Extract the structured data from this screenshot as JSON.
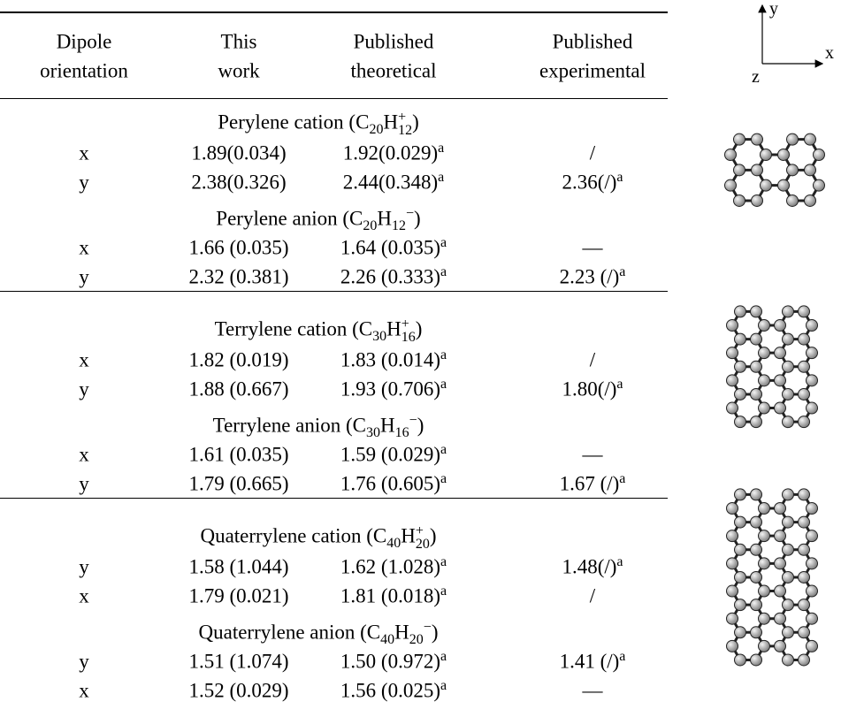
{
  "columns": [
    [
      "Dipole",
      "orientation"
    ],
    [
      "This",
      "work"
    ],
    [
      "Published",
      "theoretical"
    ],
    [
      "Published",
      "experimental"
    ]
  ],
  "sections": [
    {
      "groups": [
        {
          "title": [
            {
              "text": "Perylene cation (C"
            },
            {
              "sub": "20"
            },
            {
              "text": "H"
            },
            {
              "sup": "+",
              "sub": "12"
            },
            {
              "text": ")"
            }
          ],
          "rows": [
            {
              "orientation": "x",
              "this_work": "1.89(0.034)",
              "theoretical": {
                "text": "1.92(0.029)",
                "sup": "a"
              },
              "experimental": {
                "text": "/"
              }
            },
            {
              "orientation": "y",
              "this_work": "2.38(0.326)",
              "theoretical": {
                "text": "2.44(0.348)",
                "sup": "a"
              },
              "experimental": {
                "text": "2.36(/)",
                "sup": "a"
              }
            }
          ]
        },
        {
          "title": [
            {
              "text": "Perylene anion (C"
            },
            {
              "sub": "20"
            },
            {
              "text": "H"
            },
            {
              "sub": "12"
            },
            {
              "sup": "−"
            },
            {
              "text": ")"
            }
          ],
          "rows": [
            {
              "orientation": "x",
              "this_work": "1.66 (0.035)",
              "theoretical": {
                "text": "1.64 (0.035)",
                "sup": "a"
              },
              "experimental": {
                "text": "—"
              }
            },
            {
              "orientation": "y",
              "this_work": "2.32 (0.381)",
              "theoretical": {
                "text": "2.26 (0.333)",
                "sup": "a"
              },
              "experimental": {
                "text": "2.23 (/)",
                "sup": "a"
              }
            }
          ]
        }
      ]
    },
    {
      "groups": [
        {
          "title": [
            {
              "text": "Terrylene cation (C"
            },
            {
              "sub": "30"
            },
            {
              "text": "H"
            },
            {
              "sup": "+",
              "sub": "16"
            },
            {
              "text": ")"
            }
          ],
          "rows": [
            {
              "orientation": "x",
              "this_work": "1.82 (0.019)",
              "theoretical": {
                "text": "1.83 (0.014)",
                "sup": "a"
              },
              "experimental": {
                "text": "/"
              }
            },
            {
              "orientation": "y",
              "this_work": "1.88 (0.667)",
              "theoretical": {
                "text": "1.93 (0.706)",
                "sup": "a"
              },
              "experimental": {
                "text": "1.80(/)",
                "sup": "a"
              }
            }
          ]
        },
        {
          "title": [
            {
              "text": "Terrylene anion (C"
            },
            {
              "sub": "30"
            },
            {
              "text": "H"
            },
            {
              "sub": "16"
            },
            {
              "sup": "−"
            },
            {
              "text": ")"
            }
          ],
          "rows": [
            {
              "orientation": "x",
              "this_work": "1.61 (0.035)",
              "theoretical": {
                "text": "1.59 (0.029)",
                "sup": "a"
              },
              "experimental": {
                "text": "—"
              }
            },
            {
              "orientation": "y",
              "this_work": "1.79 (0.665)",
              "theoretical": {
                "text": "1.76 (0.605)",
                "sup": "a"
              },
              "experimental": {
                "text": "1.67 (/)",
                "sup": "a"
              }
            }
          ]
        }
      ]
    },
    {
      "groups": [
        {
          "title": [
            {
              "text": "Quaterrylene cation (C"
            },
            {
              "sub": "40"
            },
            {
              "text": "H"
            },
            {
              "sup": "+",
              "sub": "20"
            },
            {
              "text": ")"
            }
          ],
          "rows": [
            {
              "orientation": "y",
              "this_work": "1.58 (1.044)",
              "theoretical": {
                "text": "1.62 (1.028)",
                "sup": "a"
              },
              "experimental": {
                "text": "1.48(/)",
                "sup": "a"
              }
            },
            {
              "orientation": "x",
              "this_work": "1.79 (0.021)",
              "theoretical": {
                "text": "1.81 (0.018)",
                "sup": "a"
              },
              "experimental": {
                "text": "/"
              }
            }
          ]
        },
        {
          "title": [
            {
              "text": "Quaterrylene anion (C"
            },
            {
              "sub": "40"
            },
            {
              "text": "H"
            },
            {
              "sub": "20"
            },
            {
              "sup": "−"
            },
            {
              "text": ")"
            }
          ],
          "rows": [
            {
              "orientation": "y",
              "this_work": "1.51 (1.074)",
              "theoretical": {
                "text": "1.50 (0.972)",
                "sup": "a"
              },
              "experimental": {
                "text": "1.41 (/)",
                "sup": "a"
              }
            },
            {
              "orientation": "x",
              "this_work": "1.52 (0.029)",
              "theoretical": {
                "text": "1.56 (0.025)",
                "sup": "a"
              },
              "experimental": {
                "text": "—"
              }
            }
          ]
        }
      ]
    }
  ],
  "axes": {
    "y": "y",
    "x": "x",
    "z": "z"
  }
}
